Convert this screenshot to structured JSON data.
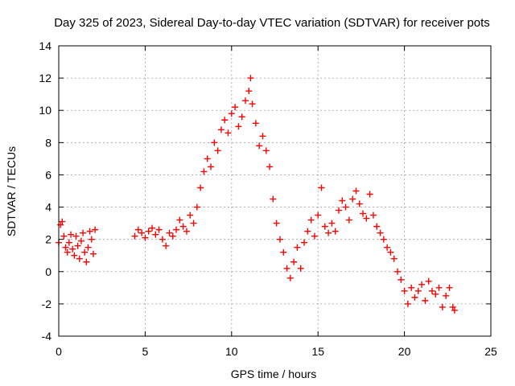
{
  "chart_data": {
    "type": "scatter",
    "title": "Day 325 of 2023, Sidereal Day-to-day VTEC variation (SDTVAR) for receiver pots",
    "xlabel": "GPS time / hours",
    "ylabel": "SDTVAR / TECUs",
    "xlim": [
      0,
      25
    ],
    "ylim": [
      -4,
      14
    ],
    "xticks": [
      0,
      5,
      10,
      15,
      20,
      25
    ],
    "yticks": [
      -4,
      -2,
      0,
      2,
      4,
      6,
      8,
      10,
      12,
      14
    ],
    "grid": true,
    "marker": "+",
    "color": "#ff0000",
    "series": [
      {
        "name": "SDTVAR",
        "segments": [
          {
            "x": [
              0.0,
              0.1,
              0.2,
              0.3,
              0.4,
              0.5,
              0.6,
              0.7,
              0.8,
              0.9,
              1.0,
              1.1,
              1.2,
              1.3,
              1.4,
              1.5,
              1.6,
              1.7,
              1.8,
              1.9,
              2.0,
              2.1
            ],
            "y": [
              1.8,
              2.9,
              3.1,
              2.2,
              1.5,
              1.2,
              1.8,
              2.3,
              1.4,
              1.0,
              2.2,
              1.6,
              0.8,
              1.9,
              2.4,
              1.2,
              0.6,
              1.5,
              2.5,
              2.0,
              1.1,
              2.6
            ]
          },
          {
            "x": [
              4.4,
              4.6,
              4.8,
              5.0,
              5.2,
              5.4,
              5.6,
              5.8,
              6.0,
              6.2,
              6.4,
              6.6,
              6.8,
              7.0,
              7.2,
              7.4,
              7.6,
              7.8,
              8.0,
              8.2,
              8.4,
              8.6,
              8.8,
              9.0,
              9.2,
              9.4,
              9.6,
              9.8,
              10.0,
              10.2,
              10.4,
              10.6,
              10.8,
              11.0,
              11.1,
              11.2,
              11.4,
              11.6,
              11.8,
              12.0,
              12.2,
              12.4,
              12.6,
              12.8,
              13.0,
              13.2,
              13.4,
              13.6,
              13.8,
              14.0,
              14.2,
              14.4,
              14.6,
              14.8,
              15.0,
              15.2,
              15.4,
              15.6,
              15.8,
              16.0,
              16.2,
              16.4,
              16.6,
              16.8,
              17.0,
              17.2,
              17.4,
              17.6,
              17.8,
              18.0,
              18.2,
              18.4,
              18.6,
              18.8,
              19.0,
              19.2,
              19.4,
              19.6,
              19.8,
              20.0,
              20.2,
              20.4,
              20.6,
              20.8,
              21.0,
              21.2,
              21.4,
              21.6,
              21.8,
              22.0,
              22.2,
              22.4,
              22.6,
              22.8,
              22.9
            ],
            "y": [
              2.2,
              2.6,
              2.4,
              2.1,
              2.5,
              2.7,
              2.3,
              2.6,
              2.0,
              1.6,
              2.4,
              2.2,
              2.6,
              3.2,
              2.8,
              2.5,
              3.5,
              3.0,
              4.0,
              5.2,
              6.2,
              7.0,
              6.5,
              8.0,
              7.5,
              8.8,
              9.4,
              8.6,
              9.8,
              10.2,
              9.0,
              9.6,
              10.6,
              11.2,
              12.0,
              10.4,
              9.2,
              7.8,
              8.4,
              7.5,
              6.5,
              4.5,
              3.0,
              2.0,
              1.2,
              0.2,
              -0.4,
              0.6,
              1.5,
              0.2,
              1.8,
              2.5,
              3.2,
              2.2,
              3.5,
              5.2,
              2.8,
              2.4,
              3.0,
              2.5,
              3.8,
              4.4,
              4.0,
              3.2,
              4.5,
              5.0,
              4.2,
              3.6,
              3.3,
              4.8,
              3.5,
              2.8,
              2.4,
              2.0,
              1.5,
              1.2,
              0.8,
              0.0,
              -0.5,
              -1.2,
              -2.0,
              -1.0,
              -1.6,
              -1.2,
              -0.8,
              -1.8,
              -0.6,
              -1.2,
              -1.4,
              -1.0,
              -2.2,
              -1.5,
              -1.0,
              -2.2,
              -2.4
            ]
          }
        ]
      }
    ]
  }
}
